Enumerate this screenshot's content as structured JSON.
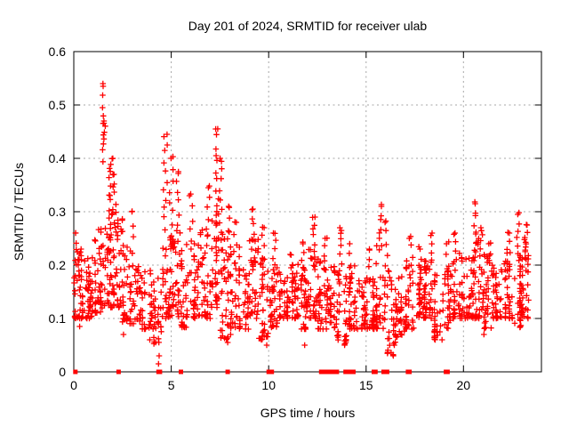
{
  "chart_data": {
    "type": "scatter",
    "title": "Day 201 of 2024, SRMTID for receiver ulab",
    "xlabel": "GPS time / hours",
    "ylabel": "SRMTID / TECUs",
    "xlim": [
      0,
      24
    ],
    "ylim": [
      0,
      0.6
    ],
    "xticks": [
      {
        "v": 0,
        "label": "0"
      },
      {
        "v": 5,
        "label": "5"
      },
      {
        "v": 10,
        "label": "10"
      },
      {
        "v": 15,
        "label": "15"
      },
      {
        "v": 20,
        "label": "20"
      }
    ],
    "yticks": [
      {
        "v": 0,
        "label": "0"
      },
      {
        "v": 0.1,
        "label": "0.1"
      },
      {
        "v": 0.2,
        "label": "0.2"
      },
      {
        "v": 0.3,
        "label": "0.3"
      },
      {
        "v": 0.4,
        "label": "0.4"
      },
      {
        "v": 0.5,
        "label": "0.5"
      },
      {
        "v": 0.6,
        "label": "0.6"
      }
    ],
    "grid": {
      "show": true,
      "color": "#a6a6a6",
      "style": "dotted"
    },
    "marker": {
      "shape": "plus",
      "color": "#ff0000",
      "size": 7
    },
    "zero_marker": {
      "shape": "square",
      "color": "#ff0000",
      "size": 5
    },
    "legend": "none",
    "density_bins": [
      [
        0.0,
        0.5,
        46,
        0.1,
        0.24
      ],
      [
        0.5,
        1.0,
        40,
        0.1,
        0.22
      ],
      [
        1.0,
        1.5,
        40,
        0.11,
        0.27
      ],
      [
        1.5,
        2.0,
        42,
        0.12,
        0.3
      ],
      [
        2.0,
        2.5,
        40,
        0.12,
        0.3
      ],
      [
        2.5,
        3.0,
        36,
        0.09,
        0.25
      ],
      [
        3.0,
        3.5,
        30,
        0.09,
        0.2
      ],
      [
        3.5,
        4.0,
        30,
        0.08,
        0.19
      ],
      [
        4.0,
        4.5,
        30,
        0.05,
        0.18
      ],
      [
        4.5,
        5.0,
        36,
        0.1,
        0.26
      ],
      [
        5.0,
        5.5,
        36,
        0.1,
        0.27
      ],
      [
        5.5,
        6.0,
        32,
        0.08,
        0.24
      ],
      [
        6.0,
        6.5,
        34,
        0.1,
        0.25
      ],
      [
        6.5,
        7.0,
        36,
        0.1,
        0.28
      ],
      [
        7.0,
        7.5,
        36,
        0.12,
        0.3
      ],
      [
        7.5,
        8.0,
        36,
        0.06,
        0.27
      ],
      [
        8.0,
        8.5,
        34,
        0.08,
        0.24
      ],
      [
        8.5,
        9.0,
        30,
        0.08,
        0.2
      ],
      [
        9.0,
        9.5,
        34,
        0.1,
        0.25
      ],
      [
        9.5,
        10.0,
        34,
        0.06,
        0.22
      ],
      [
        10.0,
        10.5,
        34,
        0.08,
        0.22
      ],
      [
        10.5,
        11.0,
        34,
        0.1,
        0.2
      ],
      [
        11.0,
        11.5,
        34,
        0.1,
        0.2
      ],
      [
        11.5,
        12.0,
        34,
        0.08,
        0.21
      ],
      [
        12.0,
        12.5,
        34,
        0.1,
        0.23
      ],
      [
        12.5,
        13.0,
        34,
        0.08,
        0.22
      ],
      [
        13.0,
        13.5,
        34,
        0.08,
        0.22
      ],
      [
        13.5,
        14.0,
        34,
        0.05,
        0.21
      ],
      [
        14.0,
        14.5,
        34,
        0.08,
        0.2
      ],
      [
        14.5,
        15.0,
        30,
        0.08,
        0.18
      ],
      [
        15.0,
        15.5,
        30,
        0.08,
        0.2
      ],
      [
        15.5,
        16.0,
        34,
        0.08,
        0.25
      ],
      [
        16.0,
        16.5,
        28,
        0.03,
        0.2
      ],
      [
        16.5,
        17.0,
        30,
        0.06,
        0.18
      ],
      [
        17.0,
        17.5,
        34,
        0.08,
        0.21
      ],
      [
        17.5,
        18.0,
        34,
        0.1,
        0.2
      ],
      [
        18.0,
        18.5,
        34,
        0.1,
        0.22
      ],
      [
        18.5,
        19.0,
        30,
        0.06,
        0.2
      ],
      [
        19.0,
        19.5,
        34,
        0.08,
        0.21
      ],
      [
        19.5,
        20.0,
        34,
        0.1,
        0.23
      ],
      [
        20.0,
        20.5,
        34,
        0.1,
        0.22
      ],
      [
        20.5,
        21.0,
        34,
        0.1,
        0.25
      ],
      [
        21.0,
        21.5,
        34,
        0.08,
        0.22
      ],
      [
        21.5,
        22.0,
        34,
        0.1,
        0.21
      ],
      [
        22.0,
        22.5,
        34,
        0.1,
        0.23
      ],
      [
        22.5,
        23.0,
        34,
        0.08,
        0.22
      ],
      [
        23.0,
        23.4,
        30,
        0.1,
        0.26
      ]
    ],
    "spikes": [
      [
        0.15,
        0.18,
        0.26,
        6,
        0.1
      ],
      [
        1.5,
        0.38,
        0.535,
        10,
        0.05
      ],
      [
        1.58,
        0.42,
        0.47,
        5,
        0.04
      ],
      [
        1.9,
        0.28,
        0.4,
        14,
        0.12
      ],
      [
        2.1,
        0.25,
        0.37,
        8,
        0.1
      ],
      [
        3.0,
        0.2,
        0.3,
        5,
        0.08
      ],
      [
        4.7,
        0.25,
        0.445,
        12,
        0.1
      ],
      [
        5.0,
        0.22,
        0.4,
        10,
        0.1
      ],
      [
        5.35,
        0.24,
        0.375,
        8,
        0.08
      ],
      [
        6.0,
        0.22,
        0.33,
        6,
        0.1
      ],
      [
        6.9,
        0.22,
        0.345,
        7,
        0.1
      ],
      [
        7.35,
        0.28,
        0.455,
        12,
        0.08
      ],
      [
        7.55,
        0.24,
        0.4,
        9,
        0.08
      ],
      [
        7.95,
        0.2,
        0.31,
        6,
        0.08
      ],
      [
        8.3,
        0.18,
        0.28,
        6,
        0.1
      ],
      [
        9.2,
        0.2,
        0.305,
        8,
        0.08
      ],
      [
        9.7,
        0.18,
        0.27,
        6,
        0.08
      ],
      [
        10.3,
        0.18,
        0.26,
        6,
        0.1
      ],
      [
        11.2,
        0.16,
        0.22,
        5,
        0.1
      ],
      [
        11.8,
        0.16,
        0.24,
        5,
        0.1
      ],
      [
        12.3,
        0.2,
        0.29,
        8,
        0.08
      ],
      [
        12.9,
        0.18,
        0.25,
        6,
        0.1
      ],
      [
        13.7,
        0.18,
        0.27,
        8,
        0.1
      ],
      [
        14.2,
        0.16,
        0.24,
        5,
        0.1
      ],
      [
        15.2,
        0.16,
        0.23,
        5,
        0.1
      ],
      [
        15.75,
        0.22,
        0.31,
        8,
        0.08
      ],
      [
        16.05,
        0.18,
        0.28,
        6,
        0.08
      ],
      [
        17.3,
        0.16,
        0.25,
        6,
        0.1
      ],
      [
        17.8,
        0.16,
        0.23,
        5,
        0.1
      ],
      [
        18.3,
        0.18,
        0.26,
        6,
        0.1
      ],
      [
        19.2,
        0.16,
        0.24,
        5,
        0.1
      ],
      [
        19.6,
        0.18,
        0.26,
        6,
        0.1
      ],
      [
        20.6,
        0.22,
        0.315,
        9,
        0.08
      ],
      [
        20.9,
        0.18,
        0.27,
        6,
        0.1
      ],
      [
        21.4,
        0.16,
        0.24,
        5,
        0.1
      ],
      [
        22.3,
        0.18,
        0.26,
        6,
        0.1
      ],
      [
        22.8,
        0.2,
        0.295,
        8,
        0.08
      ],
      [
        23.25,
        0.18,
        0.275,
        7,
        0.08
      ]
    ],
    "low_points": [
      [
        0.3,
        0.085
      ],
      [
        2.55,
        0.07
      ],
      [
        3.9,
        0.06
      ],
      [
        4.2,
        0.055
      ],
      [
        4.35,
        0.015
      ],
      [
        4.38,
        0.03
      ],
      [
        7.9,
        0.055
      ],
      [
        8.05,
        0.07
      ],
      [
        9.9,
        0.05
      ],
      [
        11.85,
        0.05
      ],
      [
        13.9,
        0.05
      ],
      [
        16.4,
        0.03
      ],
      [
        16.45,
        0.05
      ],
      [
        16.55,
        0.065
      ],
      [
        18.9,
        0.06
      ],
      [
        21.05,
        0.07
      ]
    ],
    "zero_axis_marks": [
      0.08,
      2.3,
      4.35,
      4.42,
      5.5,
      7.9,
      10.0,
      10.08,
      10.16,
      12.7,
      12.78,
      13.0,
      13.08,
      13.16,
      13.24,
      13.32,
      13.5,
      13.95,
      14.03,
      14.11,
      14.19,
      14.27,
      14.35,
      15.4,
      15.48,
      15.9,
      16.0,
      16.08,
      17.15,
      17.23,
      19.1,
      19.18
    ]
  }
}
